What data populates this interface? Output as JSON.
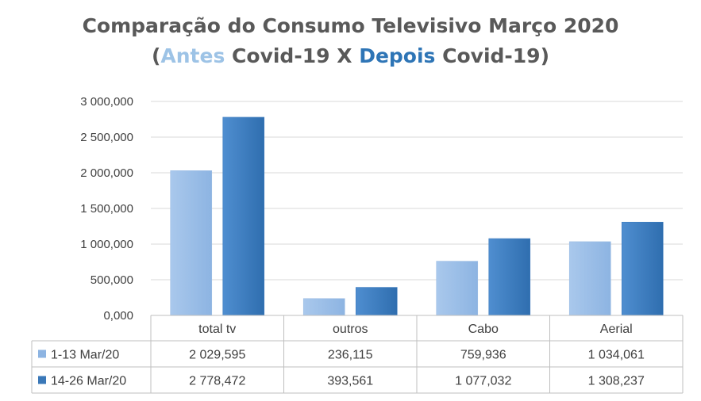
{
  "chart_data": {
    "type": "bar",
    "title_parts": {
      "line1": "Comparação do Consumo Televisivo Março 2020",
      "open": "(",
      "antes": "Antes",
      "mid": " Covid-19 X ",
      "depois": "Depois",
      "end": " Covid-19)"
    },
    "categories": [
      "total tv",
      "outros",
      "Cabo",
      "Aerial"
    ],
    "series": [
      {
        "name": "1-13 Mar/20",
        "values": [
          2029595,
          236115,
          759936,
          1034061
        ],
        "labels": [
          "2 029,595",
          "236,115",
          "759,936",
          "1 034,061"
        ],
        "color": "#8db4e2"
      },
      {
        "name": "14-26 Mar/20",
        "values": [
          2778472,
          393561,
          1077032,
          1308237
        ],
        "labels": [
          "2 778,472",
          "393,561",
          "1 077,032",
          "1 308,237"
        ],
        "color": "#3a78b8"
      }
    ],
    "ylim": [
      0,
      3000000
    ],
    "yticks": [
      0,
      500000,
      1000000,
      1500000,
      2000000,
      2500000,
      3000000
    ],
    "ytick_labels": [
      "0,000",
      "500,000",
      "1 000,000",
      "1 500,000",
      "2 000,000",
      "2 500,000",
      "3 000,000"
    ],
    "grid": true,
    "legend": "data-table"
  }
}
